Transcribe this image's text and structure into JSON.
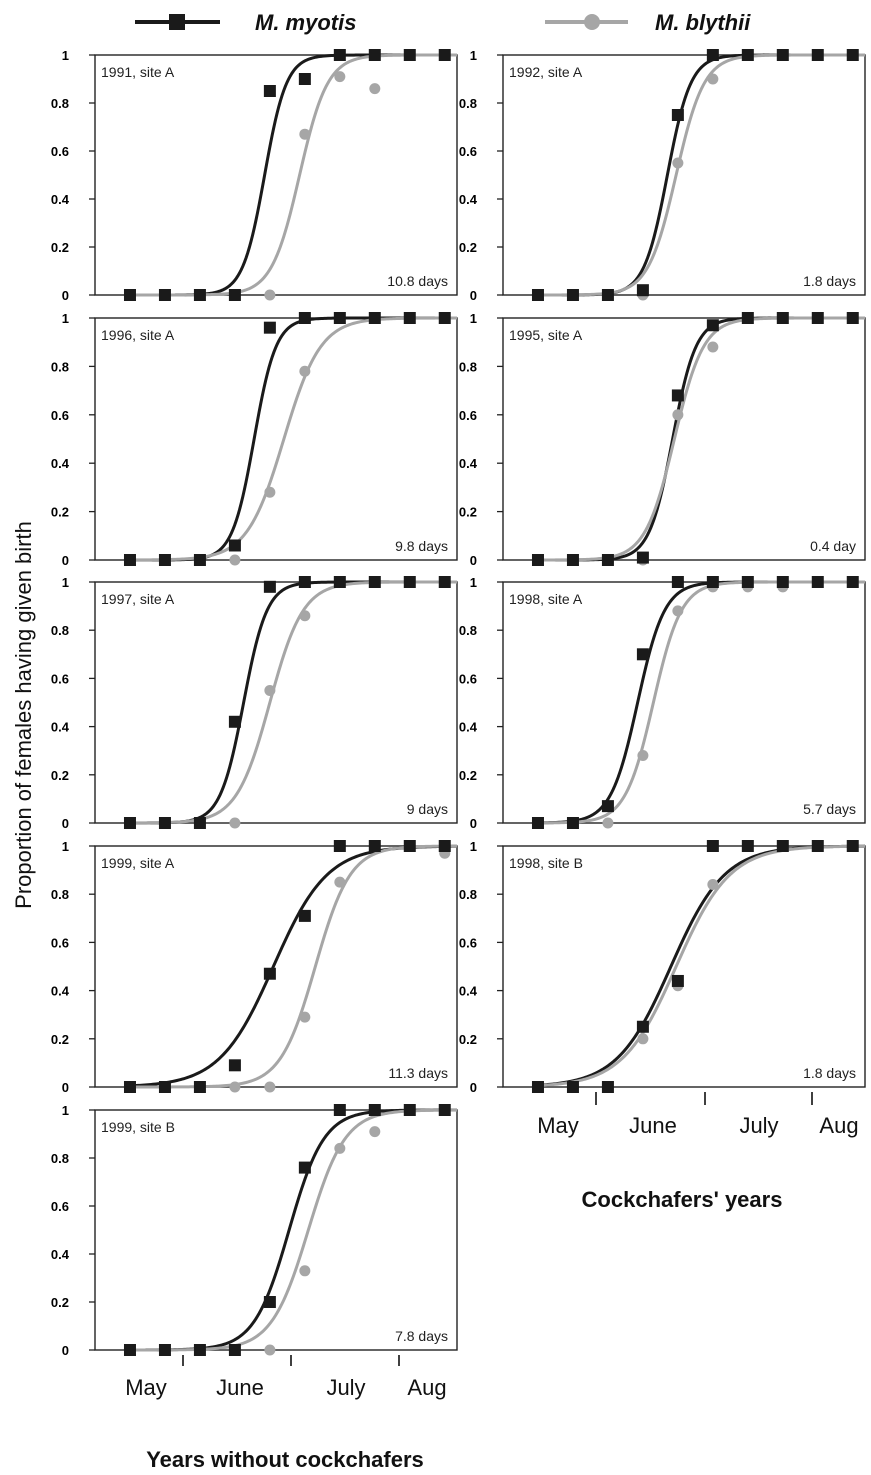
{
  "legend": {
    "series": [
      {
        "name": "M. myotis",
        "color": "#1a1a1a",
        "marker": "square"
      },
      {
        "name": "M. blythii",
        "color": "#a6a6a6",
        "marker": "circle"
      }
    ]
  },
  "ylabel": "Proportion of females having given birth",
  "y_ticks": [
    "0",
    "0.2",
    "0.4",
    "0.6",
    "0.8",
    "1"
  ],
  "month_labels": [
    "May",
    "June",
    "July",
    "Aug"
  ],
  "column_titles": {
    "left": "Years without cockchafers",
    "right": "Cockchafers' years"
  },
  "colors": {
    "myotis": "#1a1a1a",
    "blythii": "#a6a6a6"
  },
  "chart_data": [
    {
      "type": "line",
      "label": "1991, site A",
      "difference": "10.8 days",
      "ylim": [
        0,
        1
      ],
      "x": [
        1,
        2,
        3,
        4,
        5,
        6,
        7,
        8,
        9,
        10
      ],
      "series": [
        {
          "name": "M. myotis",
          "values": [
            0,
            0,
            0,
            0,
            0.85,
            0.9,
            1,
            1,
            1,
            1
          ],
          "fit_midpoint": 4.85,
          "fit_slope": 3.2
        },
        {
          "name": "M. blythii",
          "values": [
            0,
            0,
            0,
            0,
            0,
            0.67,
            0.91,
            0.86,
            1,
            1
          ],
          "fit_midpoint": 5.85,
          "fit_slope": 2.5
        }
      ]
    },
    {
      "type": "line",
      "label": "1992, site A",
      "difference": "1.8 days",
      "ylim": [
        0,
        1
      ],
      "x": [
        1,
        2,
        3,
        4,
        5,
        6,
        7,
        8,
        9,
        10
      ],
      "series": [
        {
          "name": "M. myotis",
          "values": [
            0,
            0,
            0,
            0.02,
            0.75,
            1,
            1,
            1,
            1,
            1
          ],
          "fit_midpoint": 4.7,
          "fit_slope": 3.0
        },
        {
          "name": "M. blythii",
          "values": [
            0,
            0,
            0,
            0,
            0.55,
            0.9,
            1,
            1,
            1,
            1
          ],
          "fit_midpoint": 4.95,
          "fit_slope": 2.5
        }
      ]
    },
    {
      "type": "line",
      "label": "1996, site A",
      "difference": "9.8  days",
      "ylim": [
        0,
        1
      ],
      "x": [
        1,
        2,
        3,
        4,
        5,
        6,
        7,
        8,
        9,
        10
      ],
      "series": [
        {
          "name": "M. myotis",
          "values": [
            0,
            0,
            0,
            0.06,
            0.96,
            1,
            1,
            1,
            1,
            1
          ],
          "fit_midpoint": 4.55,
          "fit_slope": 3.2
        },
        {
          "name": "M. blythii",
          "values": [
            0,
            0,
            0,
            0,
            0.28,
            0.78,
            1,
            1,
            1,
            1
          ],
          "fit_midpoint": 5.4,
          "fit_slope": 1.9
        }
      ]
    },
    {
      "type": "line",
      "label": "1995, site A",
      "difference": "0.4 day",
      "ylim": [
        0,
        1
      ],
      "x": [
        1,
        2,
        3,
        4,
        5,
        6,
        7,
        8,
        9,
        10
      ],
      "series": [
        {
          "name": "M. myotis",
          "values": [
            0,
            0,
            0,
            0.01,
            0.68,
            0.97,
            1,
            1,
            1,
            1
          ],
          "fit_midpoint": 4.85,
          "fit_slope": 3.0
        },
        {
          "name": "M. blythii",
          "values": [
            0,
            0,
            0,
            0,
            0.6,
            0.88,
            1,
            1,
            1,
            1
          ],
          "fit_midpoint": 4.9,
          "fit_slope": 2.4
        }
      ]
    },
    {
      "type": "line",
      "label": "1997, site A",
      "difference": "9  days",
      "ylim": [
        0,
        1
      ],
      "x": [
        1,
        2,
        3,
        4,
        5,
        6,
        7,
        8,
        9,
        10
      ],
      "series": [
        {
          "name": "M. myotis",
          "values": [
            0,
            0,
            0,
            0.42,
            0.98,
            1,
            1,
            1,
            1,
            1
          ],
          "fit_midpoint": 4.25,
          "fit_slope": 3.0
        },
        {
          "name": "M. blythii",
          "values": [
            0,
            0,
            0,
            0,
            0.55,
            0.86,
            1,
            1,
            1,
            1
          ],
          "fit_midpoint": 5.0,
          "fit_slope": 2.1
        }
      ]
    },
    {
      "type": "line",
      "label": "1998, site A",
      "difference": "5.7 days",
      "ylim": [
        0,
        1
      ],
      "x": [
        1,
        2,
        3,
        4,
        5,
        6,
        7,
        8,
        9,
        10
      ],
      "series": [
        {
          "name": "M. myotis",
          "values": [
            0,
            0,
            0.07,
            0.7,
            1,
            1,
            1,
            1,
            1,
            1
          ],
          "fit_midpoint": 3.85,
          "fit_slope": 2.6
        },
        {
          "name": "M. blythii",
          "values": [
            0,
            0,
            0,
            0.28,
            0.88,
            0.98,
            0.98,
            0.98,
            1,
            1
          ],
          "fit_midpoint": 4.3,
          "fit_slope": 2.5
        }
      ]
    },
    {
      "type": "line",
      "label": "1999, site A",
      "difference": "11.3  days",
      "ylim": [
        0,
        1
      ],
      "x": [
        1,
        2,
        3,
        4,
        5,
        6,
        7,
        8,
        9,
        10
      ],
      "series": [
        {
          "name": "M. myotis",
          "values": [
            0,
            0,
            0,
            0.09,
            0.47,
            0.71,
            1,
            1,
            1,
            1
          ],
          "fit_midpoint": 5.1,
          "fit_slope": 1.3
        },
        {
          "name": "M. blythii",
          "values": [
            0,
            0,
            0,
            0,
            0,
            0.29,
            0.85,
            1,
            1,
            0.97
          ],
          "fit_midpoint": 6.3,
          "fit_slope": 2.0
        }
      ]
    },
    {
      "type": "line",
      "label": "1998, site B",
      "difference": "1.8 days",
      "ylim": [
        0,
        1
      ],
      "x": [
        1,
        2,
        3,
        4,
        5,
        6,
        7,
        8,
        9,
        10
      ],
      "series": [
        {
          "name": "M. myotis",
          "values": [
            0,
            0,
            0,
            0.25,
            0.44,
            1,
            1,
            1,
            1,
            1
          ],
          "fit_midpoint": 4.8,
          "fit_slope": 1.3
        },
        {
          "name": "M. blythii",
          "values": [
            0,
            0,
            0,
            0.2,
            0.42,
            0.84,
            1,
            1,
            1,
            1
          ],
          "fit_midpoint": 4.95,
          "fit_slope": 1.3
        }
      ]
    },
    {
      "type": "line",
      "label": "1999, site B",
      "difference": "7.8  days",
      "ylim": [
        0,
        1
      ],
      "x": [
        1,
        2,
        3,
        4,
        5,
        6,
        7,
        8,
        9,
        10
      ],
      "series": [
        {
          "name": "M. myotis",
          "values": [
            0,
            0,
            0,
            0,
            0.2,
            0.76,
            1,
            1,
            1,
            1
          ],
          "fit_midpoint": 5.55,
          "fit_slope": 2.0
        },
        {
          "name": "M. blythii",
          "values": [
            0,
            0,
            0,
            0,
            0,
            0.33,
            0.84,
            0.91,
            1,
            1
          ],
          "fit_midpoint": 6.1,
          "fit_slope": 1.9
        }
      ]
    }
  ]
}
